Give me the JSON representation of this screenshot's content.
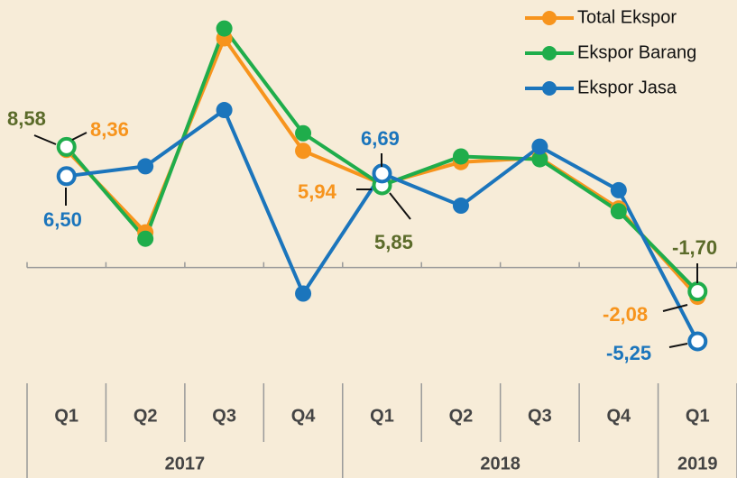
{
  "chart_data": {
    "type": "line",
    "categories": [
      "Q1",
      "Q2",
      "Q3",
      "Q4",
      "Q1",
      "Q2",
      "Q3",
      "Q4",
      "Q1"
    ],
    "groups": [
      {
        "label": "2017",
        "count": 4
      },
      {
        "label": "2018",
        "count": 4
      },
      {
        "label": "2019",
        "count": 1
      }
    ],
    "series": [
      {
        "name": "Total Ekspor",
        "color": "#f7941d",
        "label_color": "#f7941d",
        "values": [
          8.36,
          2.5,
          16.3,
          8.3,
          5.94,
          7.5,
          7.8,
          4.2,
          -2.08
        ],
        "value_labels": [
          "8,36",
          null,
          null,
          null,
          "5,94",
          null,
          null,
          null,
          "-2,08"
        ]
      },
      {
        "name": "Ekspor Barang",
        "color": "#1fad4b",
        "label_color": "#5b6b2a",
        "values": [
          8.58,
          2.05,
          17.0,
          9.55,
          5.85,
          7.9,
          7.7,
          4.0,
          -1.7
        ],
        "value_labels": [
          "8,58",
          null,
          null,
          null,
          "5,85",
          null,
          null,
          null,
          "-1,70"
        ]
      },
      {
        "name": "Ekspor Jasa",
        "color": "#1b75bc",
        "label_color": "#1b75bc",
        "values": [
          6.5,
          7.2,
          11.2,
          -1.85,
          6.69,
          4.4,
          8.6,
          5.5,
          -5.25
        ],
        "value_labels": [
          "6,50",
          null,
          null,
          null,
          "6,69",
          null,
          null,
          null,
          "-5,25"
        ]
      }
    ],
    "ylim": [
      -6.5,
      18
    ],
    "legend": "top-right"
  }
}
